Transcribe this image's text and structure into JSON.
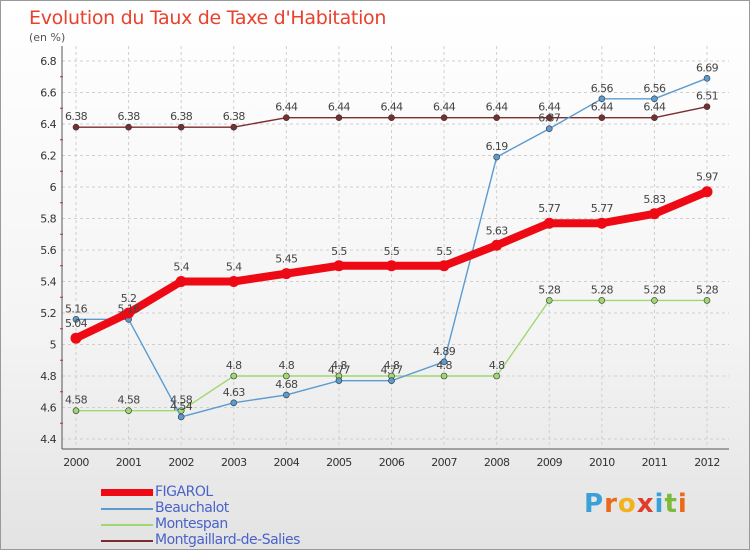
{
  "title": "Evolution du Taux de Taxe d'Habitation",
  "unit_label": "(en %)",
  "logo": {
    "letters": [
      "P",
      "r",
      "o",
      "x",
      "i",
      "t",
      "i"
    ],
    "colors": [
      "#3aa0d8",
      "#e86a1a",
      "#f2b21e",
      "#e03c2a",
      "#3aa0d8",
      "#7cba3c",
      "#e86a1a"
    ]
  },
  "chart_data": {
    "type": "line",
    "x": [
      "2000",
      "2001",
      "2002",
      "2003",
      "2004",
      "2005",
      "2006",
      "2007",
      "2008",
      "2009",
      "2010",
      "2011",
      "2012"
    ],
    "ylim": [
      4.4,
      6.8
    ],
    "yticks": [
      "4.4",
      "4.6",
      "4.8",
      "5",
      "5.2",
      "5.4",
      "5.6",
      "5.8",
      "6",
      "6.2",
      "6.4",
      "6.6",
      "6.8"
    ],
    "grid": true,
    "legend_position": "bottom-left",
    "series": [
      {
        "name": "Montgaillard-de-Salies",
        "color": "#7a2e2e",
        "values": [
          6.38,
          6.38,
          6.38,
          6.38,
          6.44,
          6.44,
          6.44,
          6.44,
          6.44,
          6.44,
          6.44,
          6.44,
          6.51
        ],
        "labels": [
          "6.38",
          "6.38",
          "6.38",
          "6.38",
          "6.44",
          "6.44",
          "6.44",
          "6.44",
          "6.44",
          "6.44",
          "6.44",
          "6.44",
          "6.51"
        ]
      },
      {
        "name": "Montespan",
        "color": "#9ed870",
        "values": [
          4.58,
          4.58,
          4.58,
          4.8,
          4.8,
          4.8,
          4.8,
          4.8,
          4.8,
          5.28,
          5.28,
          5.28,
          5.28
        ],
        "labels": [
          "4.58",
          "4.58",
          "4.58",
          "4.8",
          "4.8",
          "4.8",
          "4.8",
          "4.8",
          "4.8",
          "5.28",
          "5.28",
          "5.28",
          "5.28"
        ]
      },
      {
        "name": "Beauchalot",
        "color": "#5b9bd0",
        "values": [
          5.16,
          5.16,
          4.54,
          4.63,
          4.68,
          4.77,
          4.77,
          4.89,
          6.19,
          6.37,
          6.56,
          6.56,
          6.69
        ],
        "labels": [
          "5.16",
          "5.16",
          "4.54",
          "4.63",
          "4.68",
          "4.77",
          "4.77",
          "4.89",
          "6.19",
          "6.37",
          "6.56",
          "6.56",
          "6.69"
        ]
      },
      {
        "name": "FIGAROL",
        "color": "#ee0a14",
        "values": [
          5.04,
          5.2,
          5.4,
          5.4,
          5.45,
          5.5,
          5.5,
          5.5,
          5.63,
          5.77,
          5.77,
          5.83,
          5.97
        ],
        "labels": [
          "5.04",
          "5.2",
          "5.4",
          "5.4",
          "5.45",
          "5.5",
          "5.5",
          "5.5",
          "5.63",
          "5.77",
          "5.77",
          "5.83",
          "5.97"
        ]
      }
    ],
    "legend": [
      {
        "name": "FIGAROL",
        "color": "#ee0a14"
      },
      {
        "name": "Beauchalot",
        "color": "#5b9bd0"
      },
      {
        "name": "Montespan",
        "color": "#9ed870"
      },
      {
        "name": "Montgaillard-de-Salies",
        "color": "#7a2e2e"
      }
    ]
  }
}
